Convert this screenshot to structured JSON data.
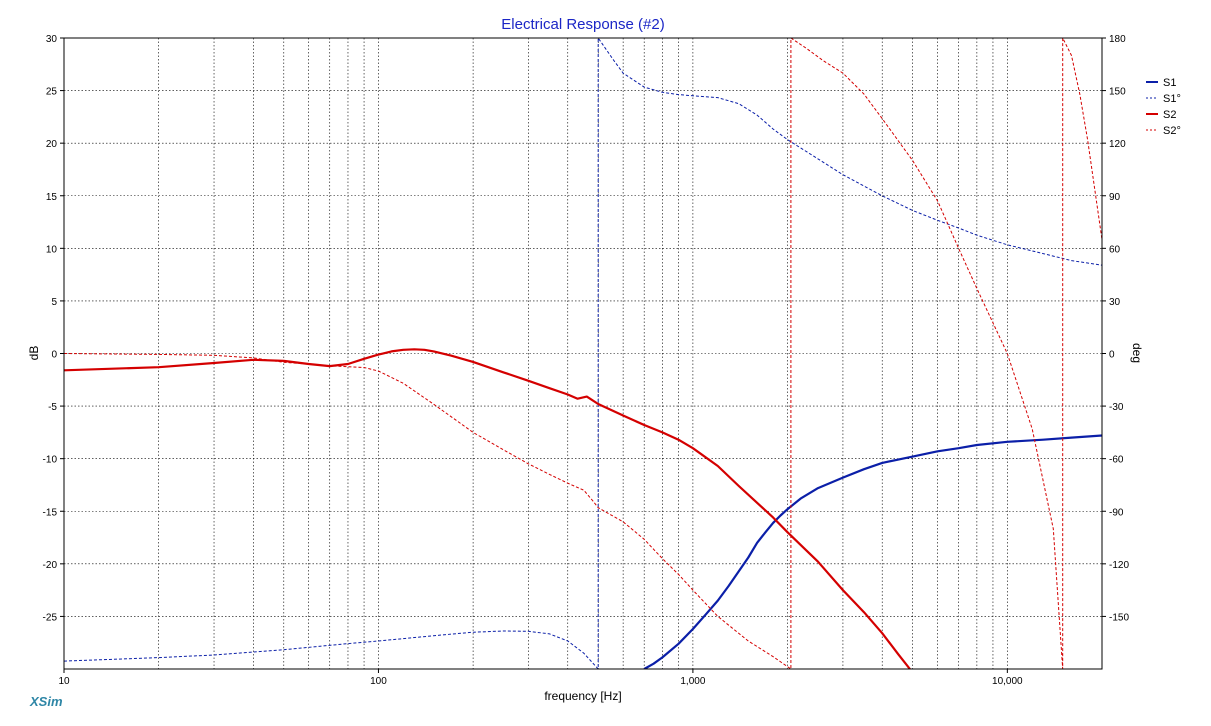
{
  "app": {
    "watermark": "XSim"
  },
  "chart_data": {
    "type": "line",
    "title": "Electrical Response (#2)",
    "xlabel": "frequency [Hz]",
    "ylabel": "dB",
    "y2label": "deg",
    "xscale": "log",
    "xlim": [
      10,
      20000
    ],
    "ylim": [
      -30,
      30
    ],
    "y2lim": [
      -180,
      180
    ],
    "grid": true,
    "legend": "right",
    "x_ticks": [
      {
        "value": 10,
        "label": "10"
      },
      {
        "value": 100,
        "label": "100"
      },
      {
        "value": 1000,
        "label": "1,000"
      },
      {
        "value": 10000,
        "label": "10,000"
      }
    ],
    "y_ticks": [
      {
        "value": 30,
        "label": "30"
      },
      {
        "value": 25,
        "label": "25"
      },
      {
        "value": 20,
        "label": "20"
      },
      {
        "value": 15,
        "label": "15"
      },
      {
        "value": 10,
        "label": "10"
      },
      {
        "value": 5,
        "label": "5"
      },
      {
        "value": 0,
        "label": "0"
      },
      {
        "value": -5,
        "label": "-5"
      },
      {
        "value": -10,
        "label": "-10"
      },
      {
        "value": -15,
        "label": "-15"
      },
      {
        "value": -20,
        "label": "-20"
      },
      {
        "value": -25,
        "label": "-25"
      }
    ],
    "y2_ticks": [
      {
        "value": 180,
        "label": "180"
      },
      {
        "value": 150,
        "label": "150"
      },
      {
        "value": 120,
        "label": "120"
      },
      {
        "value": 90,
        "label": "90"
      },
      {
        "value": 60,
        "label": "60"
      },
      {
        "value": 30,
        "label": "30"
      },
      {
        "value": 0,
        "label": "0"
      },
      {
        "value": -30,
        "label": "-30"
      },
      {
        "value": -60,
        "label": "-60"
      },
      {
        "value": -90,
        "label": "-90"
      },
      {
        "value": -120,
        "label": "-120"
      },
      {
        "value": -150,
        "label": "-150"
      }
    ],
    "series": [
      {
        "name": "S1",
        "axis": "left",
        "color": "#0b1fa8",
        "style": "solid",
        "width": 2.2,
        "points": [
          [
            700,
            -30
          ],
          [
            750,
            -29.5
          ],
          [
            800,
            -28.9
          ],
          [
            900,
            -27.6
          ],
          [
            1000,
            -26.2
          ],
          [
            1100,
            -24.8
          ],
          [
            1200,
            -23.5
          ],
          [
            1300,
            -22.1
          ],
          [
            1400,
            -20.7
          ],
          [
            1500,
            -19.4
          ],
          [
            1600,
            -18.0
          ],
          [
            1700,
            -17.0
          ],
          [
            1800,
            -16.1
          ],
          [
            1900,
            -15.4
          ],
          [
            2000,
            -14.8
          ],
          [
            2200,
            -13.8
          ],
          [
            2500,
            -12.8
          ],
          [
            3000,
            -11.8
          ],
          [
            3500,
            -11.0
          ],
          [
            4000,
            -10.4
          ],
          [
            5000,
            -9.8
          ],
          [
            6000,
            -9.3
          ],
          [
            7000,
            -9.0
          ],
          [
            8000,
            -8.7
          ],
          [
            10000,
            -8.4
          ],
          [
            13000,
            -8.2
          ],
          [
            16000,
            -8.0
          ],
          [
            20000,
            -7.8
          ]
        ]
      },
      {
        "name": "S1°",
        "axis": "right",
        "color": "#0b1fa8",
        "style": "dashed",
        "width": 1,
        "points": [
          [
            10,
            -175.5
          ],
          [
            20,
            -173.5
          ],
          [
            30,
            -172
          ],
          [
            50,
            -169
          ],
          [
            80,
            -165.5
          ],
          [
            100,
            -164
          ],
          [
            150,
            -161
          ],
          [
            200,
            -159
          ],
          [
            250,
            -158.3
          ],
          [
            300,
            -158.5
          ],
          [
            350,
            -160
          ],
          [
            400,
            -164
          ],
          [
            450,
            -171
          ],
          [
            500,
            -180
          ],
          [
            500,
            180
          ],
          [
            560,
            167.3
          ],
          [
            600,
            160
          ],
          [
            700,
            152
          ],
          [
            800,
            149
          ],
          [
            900,
            147.7
          ],
          [
            1000,
            147
          ],
          [
            1200,
            146
          ],
          [
            1400,
            142.5
          ],
          [
            1600,
            136
          ],
          [
            1800,
            128
          ],
          [
            2000,
            122
          ],
          [
            2500,
            111
          ],
          [
            3000,
            102
          ],
          [
            4000,
            90
          ],
          [
            5000,
            81.6
          ],
          [
            6000,
            76
          ],
          [
            7000,
            71.6
          ],
          [
            8000,
            67.5
          ],
          [
            10000,
            62
          ],
          [
            13000,
            57
          ],
          [
            16000,
            53
          ],
          [
            20000,
            50.4
          ]
        ]
      },
      {
        "name": "S2",
        "axis": "left",
        "color": "#d40000",
        "style": "solid",
        "width": 2.2,
        "points": [
          [
            10,
            -1.6
          ],
          [
            20,
            -1.3
          ],
          [
            30,
            -0.9
          ],
          [
            40,
            -0.6
          ],
          [
            50,
            -0.7
          ],
          [
            60,
            -1.0
          ],
          [
            70,
            -1.2
          ],
          [
            80,
            -1.0
          ],
          [
            90,
            -0.5
          ],
          [
            100,
            -0.1
          ],
          [
            110,
            0.2
          ],
          [
            120,
            0.35
          ],
          [
            130,
            0.4
          ],
          [
            140,
            0.35
          ],
          [
            150,
            0.2
          ],
          [
            170,
            -0.2
          ],
          [
            200,
            -0.8
          ],
          [
            250,
            -1.8
          ],
          [
            300,
            -2.6
          ],
          [
            350,
            -3.3
          ],
          [
            400,
            -3.9
          ],
          [
            430,
            -4.3
          ],
          [
            460,
            -4.1
          ],
          [
            500,
            -4.8
          ],
          [
            600,
            -5.9
          ],
          [
            700,
            -6.8
          ],
          [
            800,
            -7.5
          ],
          [
            900,
            -8.2
          ],
          [
            1000,
            -9.0
          ],
          [
            1200,
            -10.7
          ],
          [
            1400,
            -12.6
          ],
          [
            1600,
            -14.2
          ],
          [
            1800,
            -15.6
          ],
          [
            2000,
            -17.0
          ],
          [
            2500,
            -19.8
          ],
          [
            3000,
            -22.5
          ],
          [
            3500,
            -24.6
          ],
          [
            4000,
            -26.6
          ],
          [
            4500,
            -28.6
          ],
          [
            4900,
            -30
          ]
        ]
      },
      {
        "name": "S2°",
        "axis": "right",
        "color": "#d40000",
        "style": "dashed",
        "width": 1,
        "points": [
          [
            10,
            0
          ],
          [
            20,
            -0.5
          ],
          [
            30,
            -1
          ],
          [
            40,
            -2.5
          ],
          [
            50,
            -5
          ],
          [
            70,
            -7
          ],
          [
            90,
            -8
          ],
          [
            100,
            -10
          ],
          [
            120,
            -17
          ],
          [
            150,
            -29
          ],
          [
            200,
            -45
          ],
          [
            250,
            -55
          ],
          [
            300,
            -63
          ],
          [
            350,
            -69
          ],
          [
            400,
            -74
          ],
          [
            450,
            -78
          ],
          [
            480,
            -84
          ],
          [
            500,
            -88
          ],
          [
            600,
            -96
          ],
          [
            700,
            -106
          ],
          [
            800,
            -117
          ],
          [
            900,
            -126
          ],
          [
            1000,
            -135
          ],
          [
            1200,
            -150
          ],
          [
            1500,
            -164
          ],
          [
            1800,
            -173
          ],
          [
            2050,
            -180
          ],
          [
            2050,
            180
          ],
          [
            2300,
            174
          ],
          [
            2600,
            167
          ],
          [
            3000,
            160
          ],
          [
            3500,
            148
          ],
          [
            4000,
            134
          ],
          [
            5000,
            110
          ],
          [
            6000,
            87
          ],
          [
            7000,
            60
          ],
          [
            8000,
            37
          ],
          [
            10000,
            0
          ],
          [
            12000,
            -43
          ],
          [
            14000,
            -100
          ],
          [
            15000,
            -180
          ],
          [
            15000,
            180
          ],
          [
            16000,
            170
          ],
          [
            17000,
            148
          ],
          [
            18000,
            122
          ],
          [
            20000,
            65
          ]
        ]
      }
    ]
  }
}
